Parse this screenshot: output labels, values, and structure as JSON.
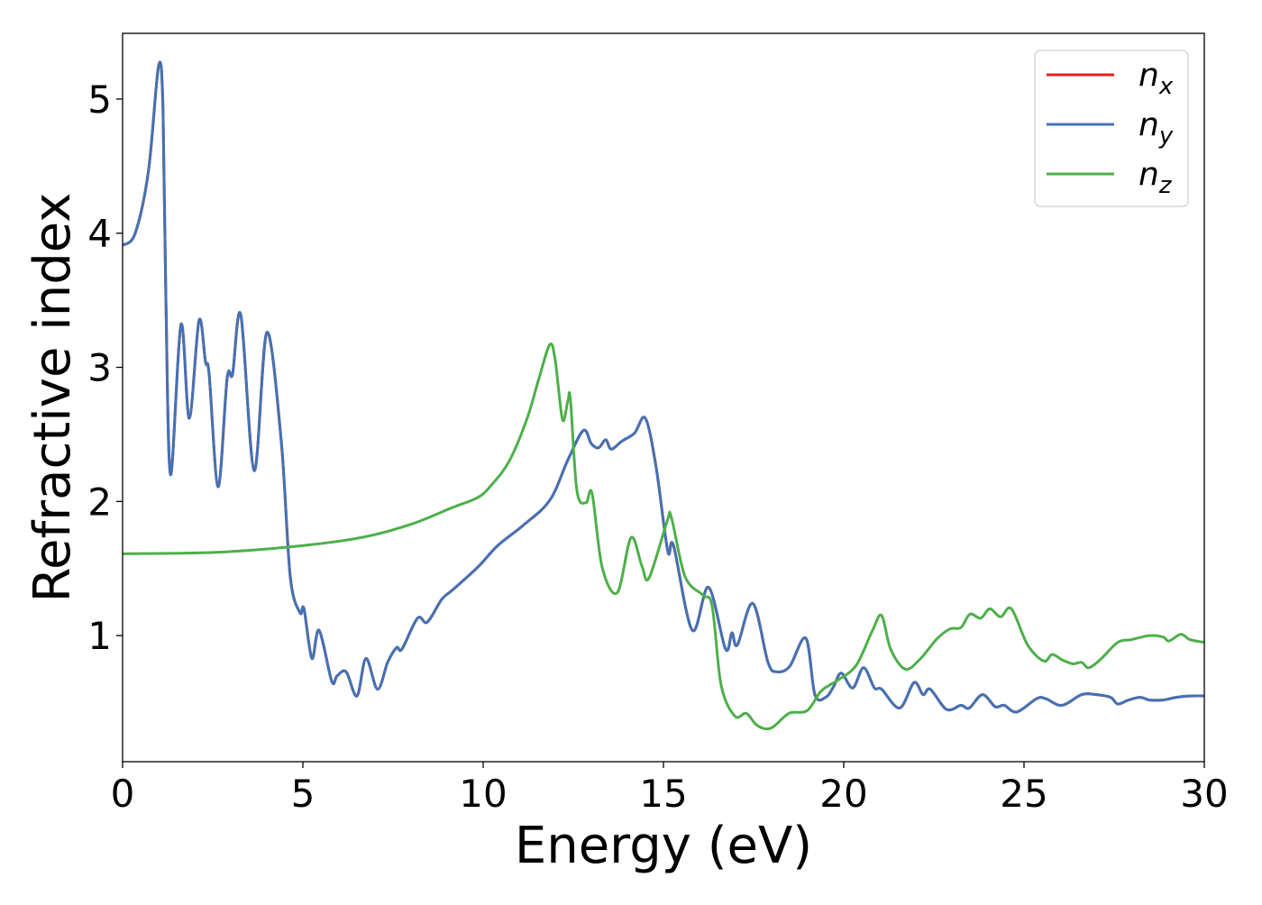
{
  "chart_data": {
    "type": "line",
    "title": "",
    "xlabel": "Energy (eV)",
    "ylabel": "Refractive index",
    "xlim": [
      0,
      30
    ],
    "ylim": [
      0.06,
      5.49
    ],
    "xticks": [
      0,
      5,
      10,
      15,
      20,
      25,
      30
    ],
    "yticks": [
      1,
      2,
      3,
      4,
      5
    ],
    "grid": false,
    "legend_position": "top-right",
    "series": [
      {
        "name": "n",
        "sub": "x",
        "color": "#e41a1c",
        "points": [
          [
            0,
            3.91
          ],
          [
            0.35,
            4.0
          ],
          [
            0.72,
            4.47
          ],
          [
            1.0,
            5.25
          ],
          [
            1.12,
            4.94
          ],
          [
            1.2,
            3.52
          ],
          [
            1.33,
            2.2
          ],
          [
            1.62,
            3.32
          ],
          [
            1.85,
            2.62
          ],
          [
            2.12,
            3.35
          ],
          [
            2.3,
            3.04
          ],
          [
            2.4,
            2.95
          ],
          [
            2.65,
            2.11
          ],
          [
            2.9,
            2.92
          ],
          [
            3.05,
            2.95
          ],
          [
            3.28,
            3.39
          ],
          [
            3.65,
            2.23
          ],
          [
            4.0,
            3.26
          ],
          [
            4.4,
            2.45
          ],
          [
            4.65,
            1.44
          ],
          [
            4.92,
            1.17
          ],
          [
            5.03,
            1.2
          ],
          [
            5.25,
            0.83
          ],
          [
            5.45,
            1.04
          ],
          [
            5.8,
            0.66
          ],
          [
            5.95,
            0.7
          ],
          [
            6.2,
            0.73
          ],
          [
            6.5,
            0.55
          ],
          [
            6.75,
            0.83
          ],
          [
            7.07,
            0.6
          ],
          [
            7.35,
            0.8
          ],
          [
            7.6,
            0.91
          ],
          [
            7.75,
            0.9
          ],
          [
            8.18,
            1.13
          ],
          [
            8.45,
            1.1
          ],
          [
            8.85,
            1.27
          ],
          [
            9.15,
            1.34
          ],
          [
            9.85,
            1.51
          ],
          [
            10.4,
            1.67
          ],
          [
            11.1,
            1.82
          ],
          [
            11.85,
            2.01
          ],
          [
            12.35,
            2.31
          ],
          [
            12.78,
            2.53
          ],
          [
            13.0,
            2.43
          ],
          [
            13.2,
            2.4
          ],
          [
            13.4,
            2.46
          ],
          [
            13.55,
            2.39
          ],
          [
            13.85,
            2.45
          ],
          [
            14.2,
            2.51
          ],
          [
            14.5,
            2.62
          ],
          [
            14.8,
            2.25
          ],
          [
            15.12,
            1.63
          ],
          [
            15.28,
            1.67
          ],
          [
            15.8,
            1.04
          ],
          [
            16.25,
            1.36
          ],
          [
            16.72,
            0.9
          ],
          [
            16.9,
            1.02
          ],
          [
            17.05,
            0.93
          ],
          [
            17.48,
            1.24
          ],
          [
            17.9,
            0.8
          ],
          [
            18.15,
            0.73
          ],
          [
            18.5,
            0.77
          ],
          [
            18.95,
            0.98
          ],
          [
            19.2,
            0.56
          ],
          [
            19.5,
            0.54
          ],
          [
            19.72,
            0.62
          ],
          [
            19.93,
            0.72
          ],
          [
            20.25,
            0.61
          ],
          [
            20.55,
            0.76
          ],
          [
            20.85,
            0.61
          ],
          [
            21.05,
            0.6
          ],
          [
            21.55,
            0.46
          ],
          [
            21.95,
            0.65
          ],
          [
            22.2,
            0.56
          ],
          [
            22.4,
            0.6
          ],
          [
            22.85,
            0.45
          ],
          [
            23.25,
            0.48
          ],
          [
            23.48,
            0.46
          ],
          [
            23.85,
            0.56
          ],
          [
            24.2,
            0.47
          ],
          [
            24.45,
            0.48
          ],
          [
            24.8,
            0.43
          ],
          [
            25.35,
            0.53
          ],
          [
            25.6,
            0.53
          ],
          [
            26.05,
            0.48
          ],
          [
            26.6,
            0.56
          ],
          [
            27.0,
            0.56
          ],
          [
            27.4,
            0.54
          ],
          [
            27.6,
            0.49
          ],
          [
            27.9,
            0.52
          ],
          [
            28.22,
            0.54
          ],
          [
            28.48,
            0.52
          ],
          [
            28.85,
            0.52
          ],
          [
            29.22,
            0.54
          ],
          [
            29.6,
            0.55
          ],
          [
            30,
            0.55
          ]
        ]
      },
      {
        "name": "n",
        "sub": "y",
        "color": "#4272b4",
        "points": [
          [
            0,
            3.91
          ],
          [
            0.35,
            4.0
          ],
          [
            0.72,
            4.47
          ],
          [
            1.0,
            5.25
          ],
          [
            1.12,
            4.94
          ],
          [
            1.2,
            3.52
          ],
          [
            1.33,
            2.2
          ],
          [
            1.62,
            3.32
          ],
          [
            1.85,
            2.62
          ],
          [
            2.12,
            3.35
          ],
          [
            2.3,
            3.04
          ],
          [
            2.4,
            2.95
          ],
          [
            2.65,
            2.11
          ],
          [
            2.9,
            2.92
          ],
          [
            3.05,
            2.95
          ],
          [
            3.28,
            3.39
          ],
          [
            3.65,
            2.23
          ],
          [
            4.0,
            3.26
          ],
          [
            4.4,
            2.45
          ],
          [
            4.65,
            1.44
          ],
          [
            4.92,
            1.17
          ],
          [
            5.03,
            1.2
          ],
          [
            5.25,
            0.83
          ],
          [
            5.45,
            1.04
          ],
          [
            5.8,
            0.66
          ],
          [
            5.95,
            0.7
          ],
          [
            6.2,
            0.73
          ],
          [
            6.5,
            0.55
          ],
          [
            6.75,
            0.83
          ],
          [
            7.07,
            0.6
          ],
          [
            7.35,
            0.8
          ],
          [
            7.6,
            0.91
          ],
          [
            7.75,
            0.9
          ],
          [
            8.18,
            1.13
          ],
          [
            8.45,
            1.1
          ],
          [
            8.85,
            1.27
          ],
          [
            9.15,
            1.34
          ],
          [
            9.85,
            1.51
          ],
          [
            10.4,
            1.67
          ],
          [
            11.1,
            1.82
          ],
          [
            11.85,
            2.01
          ],
          [
            12.35,
            2.31
          ],
          [
            12.78,
            2.53
          ],
          [
            13.0,
            2.43
          ],
          [
            13.2,
            2.4
          ],
          [
            13.4,
            2.46
          ],
          [
            13.55,
            2.39
          ],
          [
            13.85,
            2.45
          ],
          [
            14.2,
            2.51
          ],
          [
            14.5,
            2.62
          ],
          [
            14.8,
            2.25
          ],
          [
            15.12,
            1.63
          ],
          [
            15.28,
            1.67
          ],
          [
            15.8,
            1.04
          ],
          [
            16.25,
            1.36
          ],
          [
            16.72,
            0.9
          ],
          [
            16.9,
            1.02
          ],
          [
            17.05,
            0.93
          ],
          [
            17.48,
            1.24
          ],
          [
            17.9,
            0.8
          ],
          [
            18.15,
            0.73
          ],
          [
            18.5,
            0.77
          ],
          [
            18.95,
            0.98
          ],
          [
            19.2,
            0.56
          ],
          [
            19.5,
            0.54
          ],
          [
            19.72,
            0.62
          ],
          [
            19.93,
            0.72
          ],
          [
            20.25,
            0.61
          ],
          [
            20.55,
            0.76
          ],
          [
            20.85,
            0.61
          ],
          [
            21.05,
            0.6
          ],
          [
            21.55,
            0.46
          ],
          [
            21.95,
            0.65
          ],
          [
            22.2,
            0.56
          ],
          [
            22.4,
            0.6
          ],
          [
            22.85,
            0.45
          ],
          [
            23.25,
            0.48
          ],
          [
            23.48,
            0.46
          ],
          [
            23.85,
            0.56
          ],
          [
            24.2,
            0.47
          ],
          [
            24.45,
            0.48
          ],
          [
            24.8,
            0.43
          ],
          [
            25.35,
            0.53
          ],
          [
            25.6,
            0.53
          ],
          [
            26.05,
            0.48
          ],
          [
            26.6,
            0.56
          ],
          [
            27.0,
            0.56
          ],
          [
            27.4,
            0.54
          ],
          [
            27.6,
            0.49
          ],
          [
            27.9,
            0.52
          ],
          [
            28.22,
            0.54
          ],
          [
            28.48,
            0.52
          ],
          [
            28.85,
            0.52
          ],
          [
            29.22,
            0.54
          ],
          [
            29.6,
            0.55
          ],
          [
            30,
            0.55
          ]
        ]
      },
      {
        "name": "n",
        "sub": "z",
        "color": "#4daf4a",
        "points": [
          [
            0,
            1.61
          ],
          [
            2.5,
            1.62
          ],
          [
            4.6,
            1.66
          ],
          [
            6.6,
            1.73
          ],
          [
            8.0,
            1.83
          ],
          [
            9.1,
            1.95
          ],
          [
            9.85,
            2.03
          ],
          [
            10.22,
            2.12
          ],
          [
            10.72,
            2.3
          ],
          [
            11.22,
            2.62
          ],
          [
            11.55,
            2.92
          ],
          [
            11.85,
            3.17
          ],
          [
            12.0,
            3.05
          ],
          [
            12.2,
            2.61
          ],
          [
            12.35,
            2.75
          ],
          [
            12.42,
            2.76
          ],
          [
            12.6,
            2.08
          ],
          [
            12.85,
            1.99
          ],
          [
            13.02,
            2.06
          ],
          [
            13.3,
            1.51
          ],
          [
            13.72,
            1.32
          ],
          [
            14.1,
            1.73
          ],
          [
            14.4,
            1.52
          ],
          [
            14.6,
            1.43
          ],
          [
            15.1,
            1.85
          ],
          [
            15.22,
            1.88
          ],
          [
            15.6,
            1.44
          ],
          [
            16.1,
            1.3
          ],
          [
            16.35,
            1.22
          ],
          [
            16.6,
            0.63
          ],
          [
            16.98,
            0.4
          ],
          [
            17.3,
            0.42
          ],
          [
            17.6,
            0.33
          ],
          [
            17.98,
            0.31
          ],
          [
            18.48,
            0.42
          ],
          [
            18.98,
            0.44
          ],
          [
            19.35,
            0.58
          ],
          [
            19.6,
            0.63
          ],
          [
            19.85,
            0.67
          ],
          [
            20.35,
            0.78
          ],
          [
            20.8,
            1.04
          ],
          [
            21.05,
            1.15
          ],
          [
            21.3,
            0.9
          ],
          [
            21.7,
            0.75
          ],
          [
            22.1,
            0.82
          ],
          [
            22.6,
            0.98
          ],
          [
            22.95,
            1.05
          ],
          [
            23.25,
            1.06
          ],
          [
            23.5,
            1.16
          ],
          [
            23.8,
            1.13
          ],
          [
            24.05,
            1.2
          ],
          [
            24.35,
            1.14
          ],
          [
            24.65,
            1.2
          ],
          [
            25.1,
            0.93
          ],
          [
            25.55,
            0.81
          ],
          [
            25.78,
            0.86
          ],
          [
            26.05,
            0.82
          ],
          [
            26.35,
            0.79
          ],
          [
            26.6,
            0.8
          ],
          [
            26.8,
            0.76
          ],
          [
            27.15,
            0.83
          ],
          [
            27.6,
            0.95
          ],
          [
            27.98,
            0.97
          ],
          [
            28.48,
            1.0
          ],
          [
            28.85,
            0.99
          ],
          [
            29.02,
            0.96
          ],
          [
            29.35,
            1.01
          ],
          [
            29.6,
            0.97
          ],
          [
            30,
            0.95
          ]
        ]
      }
    ]
  }
}
